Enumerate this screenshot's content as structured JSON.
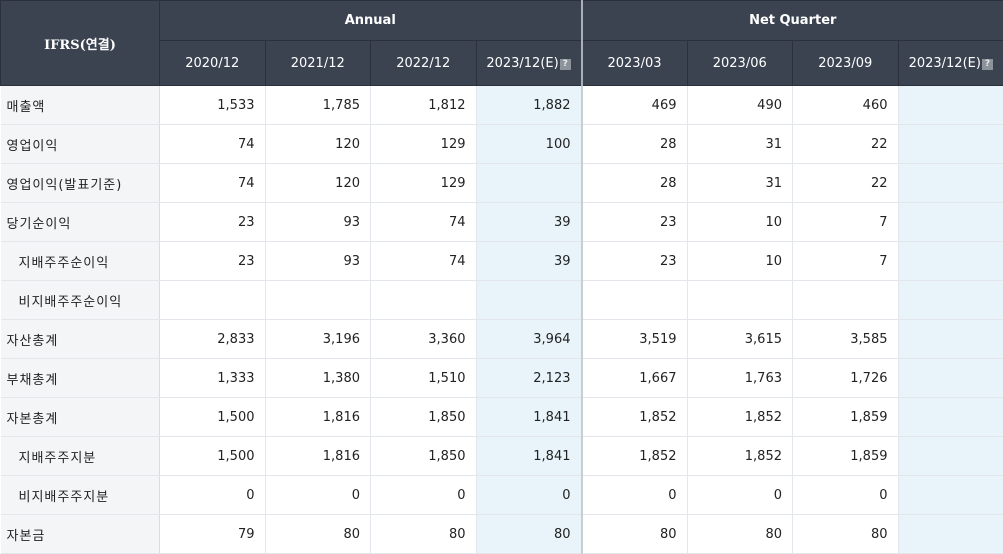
{
  "header": {
    "corner_label": "IFRS(연결)",
    "groups": {
      "annual": "Annual",
      "quarter": "Net Quarter"
    },
    "annual_periods": [
      "2020/12",
      "2021/12",
      "2022/12",
      "2023/12(E)"
    ],
    "quarter_periods": [
      "2023/03",
      "2023/06",
      "2023/09",
      "2023/12(E)"
    ],
    "estimate_icon": "help-icon"
  },
  "rows": [
    {
      "label": "매출액",
      "sub": false,
      "values": [
        "1,533",
        "1,785",
        "1,812",
        "1,882",
        "469",
        "490",
        "460",
        ""
      ]
    },
    {
      "label": "영업이익",
      "sub": false,
      "values": [
        "74",
        "120",
        "129",
        "100",
        "28",
        "31",
        "22",
        ""
      ]
    },
    {
      "label": "영업이익(발표기준)",
      "sub": false,
      "values": [
        "74",
        "120",
        "129",
        "",
        "28",
        "31",
        "22",
        ""
      ]
    },
    {
      "label": "당기순이익",
      "sub": false,
      "values": [
        "23",
        "93",
        "74",
        "39",
        "23",
        "10",
        "7",
        ""
      ]
    },
    {
      "label": "지배주주순이익",
      "sub": true,
      "values": [
        "23",
        "93",
        "74",
        "39",
        "23",
        "10",
        "7",
        ""
      ]
    },
    {
      "label": "비지배주주순이익",
      "sub": true,
      "values": [
        "",
        "",
        "",
        "",
        "",
        "",
        "",
        ""
      ]
    },
    {
      "label": "자산총계",
      "sub": false,
      "values": [
        "2,833",
        "3,196",
        "3,360",
        "3,964",
        "3,519",
        "3,615",
        "3,585",
        ""
      ]
    },
    {
      "label": "부채총계",
      "sub": false,
      "values": [
        "1,333",
        "1,380",
        "1,510",
        "2,123",
        "1,667",
        "1,763",
        "1,726",
        ""
      ]
    },
    {
      "label": "자본총계",
      "sub": false,
      "values": [
        "1,500",
        "1,816",
        "1,850",
        "1,841",
        "1,852",
        "1,852",
        "1,859",
        ""
      ]
    },
    {
      "label": "지배주주지분",
      "sub": true,
      "values": [
        "1,500",
        "1,816",
        "1,850",
        "1,841",
        "1,852",
        "1,852",
        "1,859",
        ""
      ]
    },
    {
      "label": "비지배주주지분",
      "sub": true,
      "values": [
        "0",
        "0",
        "0",
        "0",
        "0",
        "0",
        "0",
        ""
      ]
    },
    {
      "label": "자본금",
      "sub": false,
      "values": [
        "79",
        "80",
        "80",
        "80",
        "80",
        "80",
        "80",
        ""
      ]
    }
  ]
}
